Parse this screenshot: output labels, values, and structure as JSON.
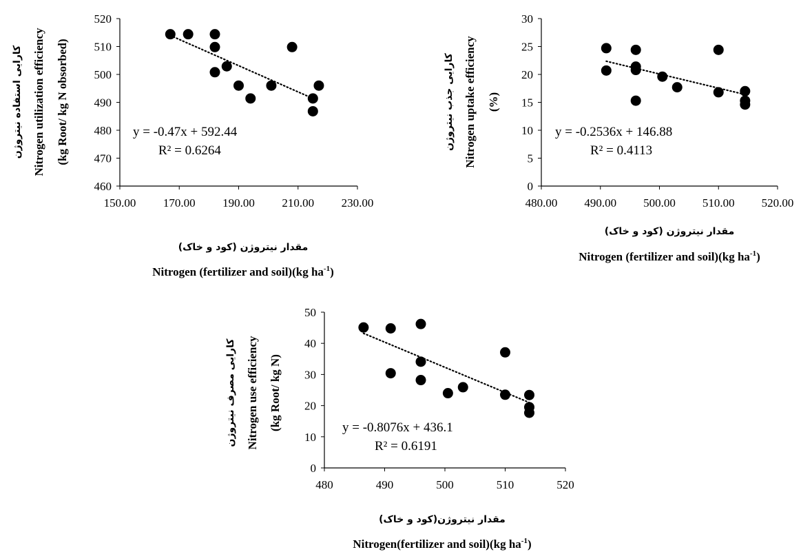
{
  "chart_data": [
    {
      "type": "scatter",
      "ylabel_fa": "کارایی استفاده نیتروژن",
      "ylabel_en": "Nitrogen utilization efficiency",
      "ylabel_unit": "(kg Root/ kg N obsorbed)",
      "xlabel_fa": "مقدار نیتروژن (کود و خاک)",
      "xlabel_en": "Nitrogen (fertilizer and soil)(kg ha",
      "xlabel_sup": "-1",
      "xlabel_close": ")",
      "equation": "y = -0.47x + 592.44",
      "r2": "R² = 0.6264",
      "xlim": [
        150,
        230
      ],
      "ylim": [
        460,
        520
      ],
      "xticks": [
        "150.00",
        "170.00",
        "190.00",
        "210.00",
        "230.00"
      ],
      "yticks": [
        "460",
        "470",
        "480",
        "490",
        "500",
        "510",
        "520"
      ],
      "trendline": {
        "slope": -0.47,
        "intercept": 592.44,
        "x_range": [
          167,
          215
        ]
      },
      "points": [
        {
          "x": 167,
          "y": 514.4
        },
        {
          "x": 173,
          "y": 514.4
        },
        {
          "x": 182,
          "y": 514.4
        },
        {
          "x": 182,
          "y": 509.8
        },
        {
          "x": 182,
          "y": 500.8
        },
        {
          "x": 186,
          "y": 502.9
        },
        {
          "x": 190,
          "y": 496.0
        },
        {
          "x": 194,
          "y": 491.4
        },
        {
          "x": 201,
          "y": 496.0
        },
        {
          "x": 208,
          "y": 509.8
        },
        {
          "x": 215,
          "y": 491.4
        },
        {
          "x": 215,
          "y": 486.8
        },
        {
          "x": 217,
          "y": 496.0
        }
      ]
    },
    {
      "type": "scatter",
      "ylabel_fa": "کارایی جذب نیتروژن",
      "ylabel_en": "Nitrogen uptake efficiency",
      "ylabel_unit": "(%)",
      "xlabel_fa": "مقدار نیتروژن (کود و خاک)",
      "xlabel_en": "Nitrogen (fertilizer and soil)(kg ha",
      "xlabel_sup": "-1",
      "xlabel_close": ")",
      "equation": "y = -0.2536x + 146.88",
      "r2": "R² = 0.4113",
      "xlim": [
        480,
        520
      ],
      "ylim": [
        0,
        30
      ],
      "xticks": [
        "480.00",
        "490.00",
        "500.00",
        "510.00",
        "520.00"
      ],
      "yticks": [
        "0",
        "5",
        "10",
        "15",
        "20",
        "25",
        "30"
      ],
      "trendline": {
        "slope": -0.2536,
        "intercept": 146.88,
        "x_range": [
          491,
          514
        ]
      },
      "points": [
        {
          "x": 491,
          "y": 24.7
        },
        {
          "x": 491,
          "y": 20.7
        },
        {
          "x": 496,
          "y": 24.4
        },
        {
          "x": 496,
          "y": 21.4
        },
        {
          "x": 496,
          "y": 20.8
        },
        {
          "x": 496,
          "y": 15.3
        },
        {
          "x": 500.5,
          "y": 19.6
        },
        {
          "x": 503,
          "y": 17.7
        },
        {
          "x": 510,
          "y": 24.4
        },
        {
          "x": 510,
          "y": 16.8
        },
        {
          "x": 514.5,
          "y": 17.0
        },
        {
          "x": 514.5,
          "y": 15.3
        },
        {
          "x": 514.5,
          "y": 14.6
        }
      ]
    },
    {
      "type": "scatter",
      "ylabel_fa": "کارایی مصرف نیتروژن",
      "ylabel_en": "Nitrogen use efficiency",
      "ylabel_unit": "(kg Root/ kg N)",
      "xlabel_fa": "مقدار نیتروژن(کود و خاک)",
      "xlabel_en": "Nitrogen(fertilizer and soil)(kg ha",
      "xlabel_sup": "-1",
      "xlabel_close": ")",
      "equation": "y = -0.8076x + 436.1",
      "r2": "R² = 0.6191",
      "xlim": [
        480,
        520
      ],
      "ylim": [
        0,
        50
      ],
      "xticks": [
        "480",
        "490",
        "500",
        "510",
        "520"
      ],
      "yticks": [
        "0",
        "10",
        "20",
        "30",
        "40",
        "50"
      ],
      "trendline": {
        "slope": -0.8076,
        "intercept": 436.1,
        "x_range": [
          486.5,
          514
        ]
      },
      "points": [
        {
          "x": 486.5,
          "y": 45.1
        },
        {
          "x": 491,
          "y": 44.8
        },
        {
          "x": 491,
          "y": 30.4
        },
        {
          "x": 496,
          "y": 46.2
        },
        {
          "x": 496,
          "y": 34.1
        },
        {
          "x": 496,
          "y": 28.2
        },
        {
          "x": 500.5,
          "y": 24.0
        },
        {
          "x": 503,
          "y": 25.9
        },
        {
          "x": 510,
          "y": 37.1
        },
        {
          "x": 510,
          "y": 23.5
        },
        {
          "x": 514,
          "y": 23.4
        },
        {
          "x": 514,
          "y": 19.5
        },
        {
          "x": 514,
          "y": 17.7
        }
      ]
    }
  ]
}
